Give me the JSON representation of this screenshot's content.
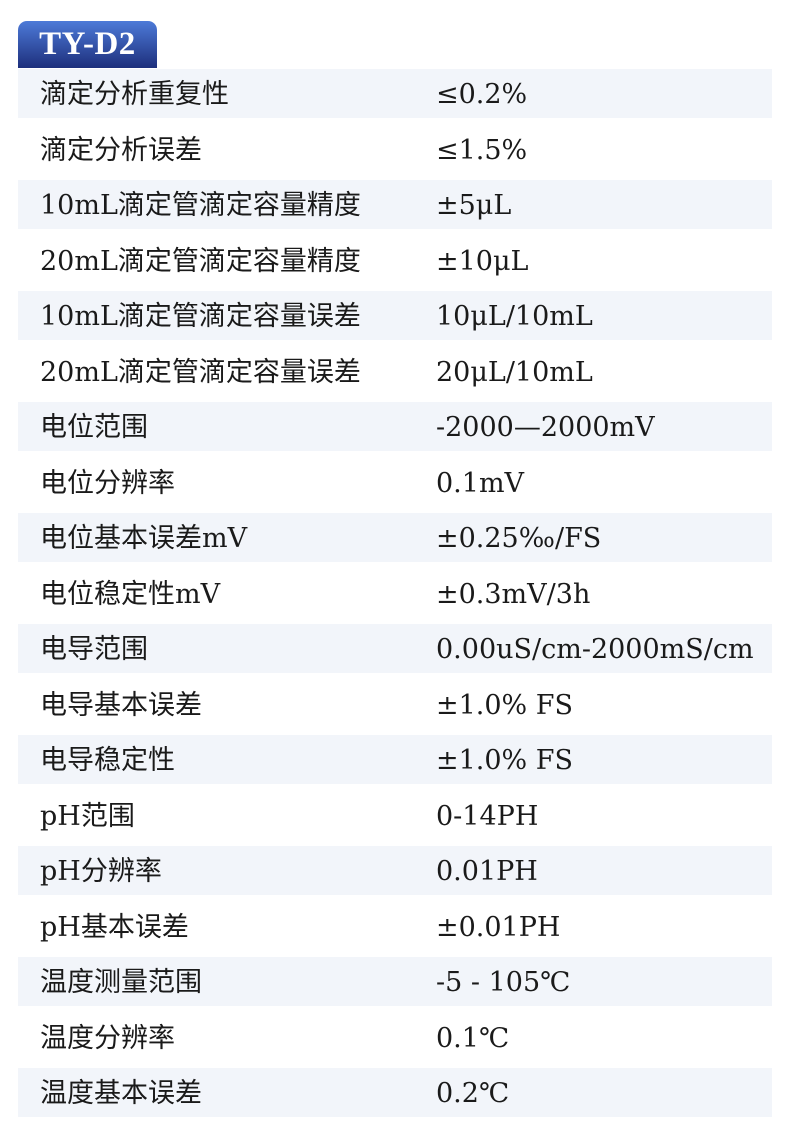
{
  "title": "TY-D2",
  "colors": {
    "tab_top": "#4d7ad8",
    "tab_bottom": "#1d2f7c",
    "row_shade": "#f2f5fa"
  },
  "rows": [
    {
      "label": "滴定分析重复性",
      "value": "≤0.2%"
    },
    {
      "label": "滴定分析误差",
      "value": "≤1.5%"
    },
    {
      "label": "10mL滴定管滴定容量精度",
      "value": "±5μL"
    },
    {
      "label": "20mL滴定管滴定容量精度",
      "value": "±10μL"
    },
    {
      "label": "10mL滴定管滴定容量误差",
      "value": "10μL/10mL"
    },
    {
      "label": "20mL滴定管滴定容量误差",
      "value": "20μL/10mL"
    },
    {
      "label": "电位范围",
      "value": "-2000—2000mV"
    },
    {
      "label": "电位分辨率",
      "value": "0.1mV"
    },
    {
      "label": "电位基本误差mV",
      "value": "±0.25‰/FS"
    },
    {
      "label": "电位稳定性mV",
      "value": "±0.3mV/3h"
    },
    {
      "label": "电导范围",
      "value": "0.00uS/cm-2000mS/cm"
    },
    {
      "label": "电导基本误差",
      "value": "±1.0% FS"
    },
    {
      "label": "电导稳定性",
      "value": "±1.0% FS"
    },
    {
      "label": "pH范围",
      "value": "0-14PH"
    },
    {
      "label": "pH分辨率",
      "value": "0.01PH"
    },
    {
      "label": "pH基本误差",
      "value": "±0.01PH"
    },
    {
      "label": "温度测量范围",
      "value": "-5 - 105℃"
    },
    {
      "label": "温度分辨率",
      "value": "0.1℃"
    },
    {
      "label": "温度基本误差",
      "value": "0.2℃"
    }
  ]
}
